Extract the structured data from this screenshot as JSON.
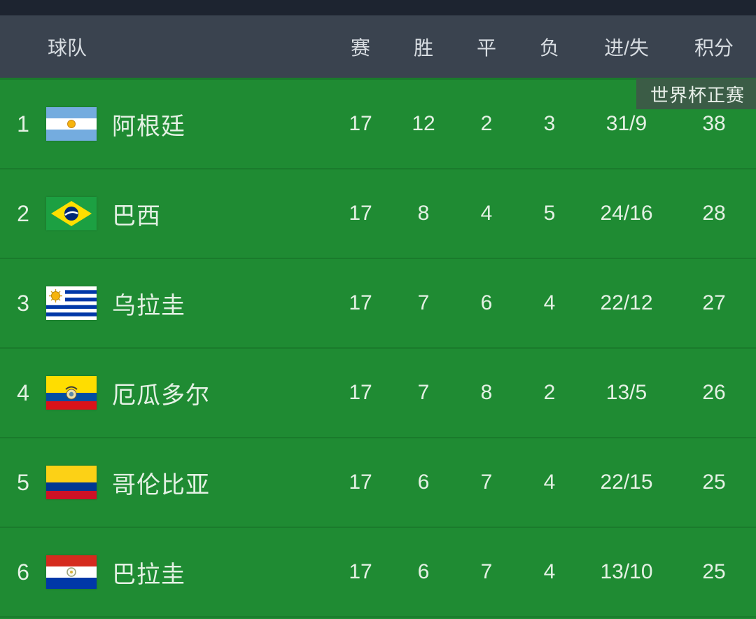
{
  "header": {
    "team_label": "球队",
    "columns": [
      "赛",
      "胜",
      "平",
      "负",
      "进/失",
      "积分"
    ]
  },
  "badge": {
    "label": "世界杯正赛"
  },
  "colors": {
    "top_strip": "#1d2430",
    "header_bg": "#3a434f",
    "header_text": "#d8dde2",
    "table_bg": "#1f8b33",
    "row_divider": "#1a7b2c",
    "row_text": "#e4f1e4",
    "badge_bg": "rgba(62,88,72,0.92)",
    "badge_text": "#e8efe9"
  },
  "standings": [
    {
      "rank": "1",
      "team": "阿根廷",
      "flag": "argentina",
      "played": "17",
      "won": "12",
      "drawn": "2",
      "lost": "3",
      "goals": "31/9",
      "points": "38"
    },
    {
      "rank": "2",
      "team": "巴西",
      "flag": "brazil",
      "played": "17",
      "won": "8",
      "drawn": "4",
      "lost": "5",
      "goals": "24/16",
      "points": "28"
    },
    {
      "rank": "3",
      "team": "乌拉圭",
      "flag": "uruguay",
      "played": "17",
      "won": "7",
      "drawn": "6",
      "lost": "4",
      "goals": "22/12",
      "points": "27"
    },
    {
      "rank": "4",
      "team": "厄瓜多尔",
      "flag": "ecuador",
      "played": "17",
      "won": "7",
      "drawn": "8",
      "lost": "2",
      "goals": "13/5",
      "points": "26"
    },
    {
      "rank": "5",
      "team": "哥伦比亚",
      "flag": "colombia",
      "played": "17",
      "won": "6",
      "drawn": "7",
      "lost": "4",
      "goals": "22/15",
      "points": "25"
    },
    {
      "rank": "6",
      "team": "巴拉圭",
      "flag": "paraguay",
      "played": "17",
      "won": "6",
      "drawn": "7",
      "lost": "4",
      "goals": "13/10",
      "points": "25"
    }
  ]
}
